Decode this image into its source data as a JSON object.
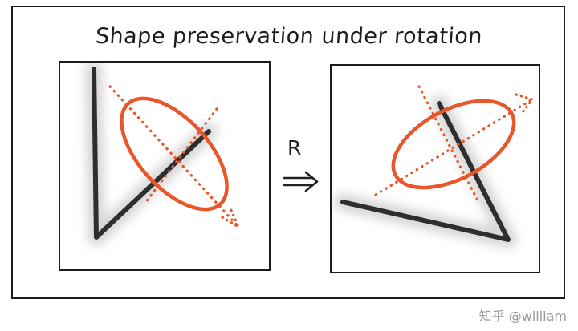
{
  "title": "Shape preservation under rotation",
  "rotation_label": "R",
  "watermark": "知乎 @william",
  "colors": {
    "ink": "#1c1c1c",
    "accent": "#e8562a",
    "smudge": "#9a9a9a"
  },
  "icons": {
    "rotation_arrow": "double-arrow-right-icon"
  }
}
